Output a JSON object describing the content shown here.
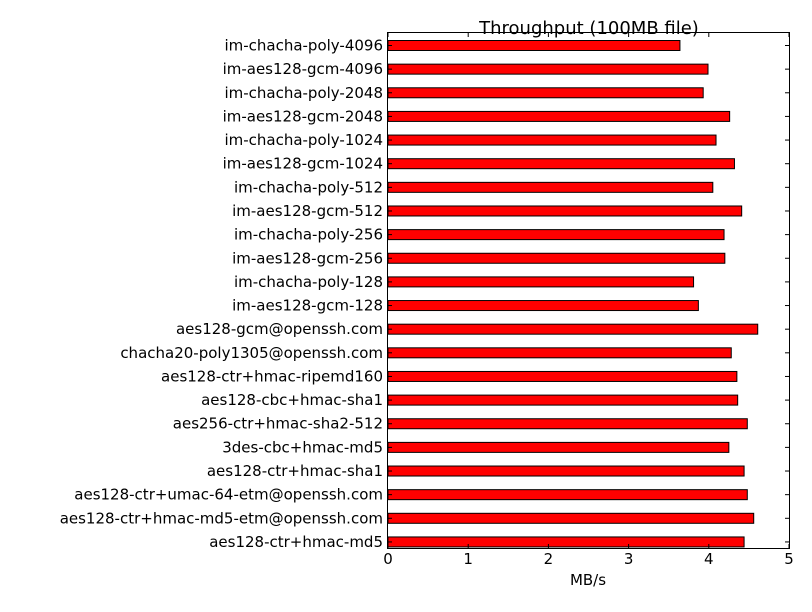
{
  "chart_data": {
    "type": "bar",
    "orientation": "horizontal",
    "title": "Throughput (100MB file)",
    "xlabel": "MB/s",
    "ylabel": "",
    "xlim": [
      0,
      5
    ],
    "xticks": [
      "0",
      "1",
      "2",
      "3",
      "4",
      "5"
    ],
    "bar_color": "#ff0000",
    "bar_edge_color": "#000000",
    "grid": false,
    "categories": [
      "im-chacha-poly-4096",
      "im-aes128-gcm-4096",
      "im-chacha-poly-2048",
      "im-aes128-gcm-2048",
      "im-chacha-poly-1024",
      "im-aes128-gcm-1024",
      "im-chacha-poly-512",
      "im-aes128-gcm-512",
      "im-chacha-poly-256",
      "im-aes128-gcm-256",
      "im-chacha-poly-128",
      "im-aes128-gcm-128",
      "aes128-gcm@openssh.com",
      "chacha20-poly1305@openssh.com",
      "aes128-ctr+hmac-ripemd160",
      "aes128-cbc+hmac-sha1",
      "aes256-ctr+hmac-sha2-512",
      "3des-cbc+hmac-md5",
      "aes128-ctr+hmac-sha1",
      "aes128-ctr+umac-64-etm@openssh.com",
      "aes128-ctr+hmac-md5-etm@openssh.com",
      "aes128-ctr+hmac-md5"
    ],
    "values": [
      3.64,
      3.99,
      3.93,
      4.26,
      4.09,
      4.32,
      4.05,
      4.41,
      4.19,
      4.2,
      3.81,
      3.87,
      4.61,
      4.28,
      4.35,
      4.36,
      4.48,
      4.25,
      4.44,
      4.48,
      4.56,
      4.44
    ]
  }
}
